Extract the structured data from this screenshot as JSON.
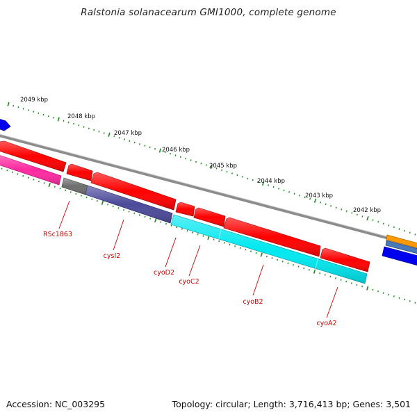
{
  "header": {
    "title": "Ralstonia solanacearum GMI1000, complete genome"
  },
  "footer": {
    "accession": "Accession: NC_003295",
    "summary": "Topology: circular; Length: 3,716,413 bp; Genes: 3,501"
  },
  "ruler": {
    "tick_labels": [
      "2049 kbp",
      "2048 kbp",
      "2047 kbp",
      "2046 kbp",
      "2045 kbp",
      "2044 kbp",
      "2043 kbp",
      "2042 kbp"
    ]
  },
  "genes": {
    "labels": [
      "RSc1863",
      "cysI2",
      "cyoD2",
      "cyoC2",
      "cyoB2",
      "cyoA2"
    ]
  },
  "colors": {
    "backbone": "#8c8c8c",
    "cds_forward": "#ff0000",
    "cds_reverse": "#ff0000",
    "ruler_tick": "#1a8a1a",
    "label_text": "#cc0000",
    "label_line": "#cc0000",
    "track_magenta": "#ff2aa0",
    "track_grey": "#6e6e6e",
    "track_slate": "#4b4a9a",
    "track_cyan": "#00e8f0",
    "track_blue": "#0000ff",
    "track_orange": "#ff9900",
    "track_steel": "#4a78b8"
  }
}
